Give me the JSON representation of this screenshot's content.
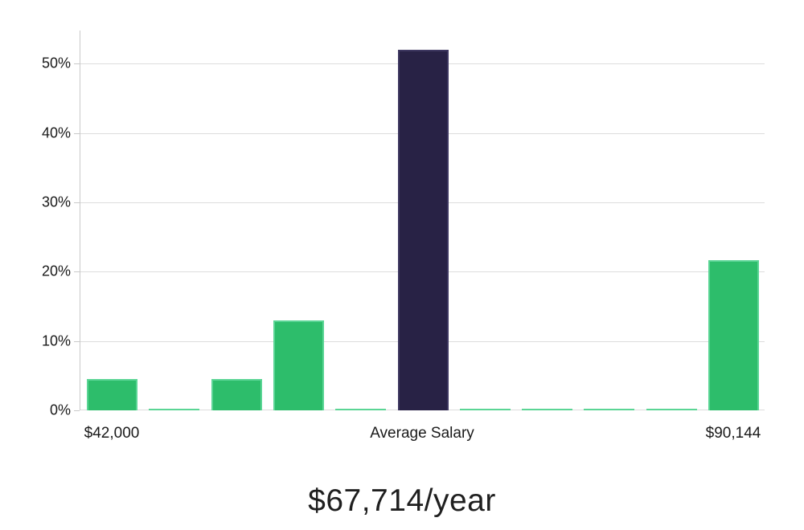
{
  "chart_data": {
    "type": "bar",
    "title": "$67,714/year",
    "xlabel": "",
    "ylabel": "",
    "values": [
      4.5,
      0.2,
      4.5,
      13,
      0.2,
      52,
      0.2,
      0.2,
      0.2,
      0.2,
      21.7
    ],
    "bar_roles": [
      "normal",
      "normal",
      "normal",
      "normal",
      "normal",
      "highlight",
      "normal",
      "normal",
      "normal",
      "normal",
      "normal"
    ],
    "x_tick_labels": [
      {
        "label": "$42,000",
        "bar_index": 0
      },
      {
        "label": "Average Salary",
        "bar_index": 5
      },
      {
        "label": "$90,144",
        "bar_index": 10
      }
    ],
    "y_ticks": [
      "0%",
      "10%",
      "20%",
      "30%",
      "40%",
      "50%"
    ],
    "y_tick_values": [
      0,
      10,
      20,
      30,
      40,
      50
    ],
    "ylim": [
      0,
      54.8
    ],
    "grid": true,
    "legend": false,
    "colors": {
      "bar_normal": "#2dbd6b",
      "bar_normal_border": "#5bd595",
      "bar_highlight": "#282245",
      "bar_highlight_border": "#3d3760",
      "gridline": "#dddddd",
      "axis_line": "#c9c9c9",
      "tick_text": "#1a1a1a",
      "title_text": "#1f1f1f"
    }
  }
}
